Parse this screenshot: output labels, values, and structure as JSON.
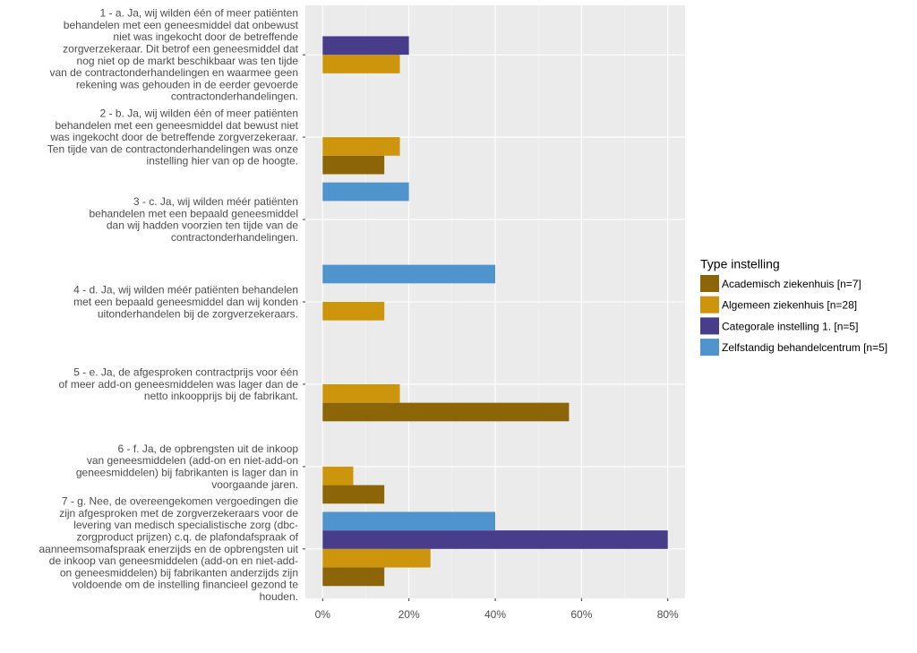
{
  "chart_data": {
    "type": "bar",
    "orientation": "horizontal",
    "categories": [
      "1 - a. Ja, wij wilden één of meer patiënten\nbehandelen met een geneesmiddel dat onbewust\nniet was ingekocht door de betreffende\nzorgverzekeraar. Dit betrof een geneesmiddel dat\nnog niet op de markt beschikbaar was ten tijde\nvan de contractonderhandelingen en waarmee geen\nrekening was gehouden in de eerder gevoerde\ncontractonderhandelingen.",
      "2 - b. Ja, wij wilden één of meer patiënten\nbehandelen met een geneesmiddel dat bewust niet\nwas ingekocht door de betreffende zorgverzekeraar.\nTen tijde van de contractonderhandelingen was onze\ninstelling hier van op de hoogte.",
      "3 - c. Ja, wij wilden méér patiënten\nbehandelen met een bepaald geneesmiddel\ndan wij hadden voorzien ten tijde van de\ncontractonderhandelingen.",
      "4 - d. Ja, wij wilden méér patiënten behandelen\nmet een bepaald geneesmiddel dan wij konden\nuitonderhandelen bij de zorgverzekeraars.",
      "5 - e. Ja, de afgesproken contractprijs voor één\nof meer add-on geneesmiddelen was lager dan de\nnetto inkoopprijs bij de fabrikant.",
      "6 - f. Ja, de opbrengsten uit de inkoop\nvan geneesmiddelen (add-on en niet-add-on\ngeneesmiddelen) bij fabrikanten is lager dan in\nvoorgaande jaren.",
      "7 - g. Nee, de overeengekomen vergoedingen die\nzijn afgesproken met de zorgverzekeraars voor de\nlevering van medisch specialistische zorg (dbc-\nzorgproduct prijzen) c.q. de plafondafspraak of\naanneemsomafspraak enerzijds en de opbrengsten uit\nde inkoop van geneesmiddelen (add-on en niet-add-\non geneesmiddelen) bij fabrikanten anderzijds zijn\nvoldoende om de instelling financieel gezond te\nhouden."
    ],
    "series": [
      {
        "name": "Academisch ziekenhuis [n=7]",
        "color": "#8b6508",
        "values": [
          0,
          14.3,
          0,
          0,
          57.1,
          14.3,
          14.3
        ]
      },
      {
        "name": "Algemeen ziekenhuis [n=28]",
        "color": "#cd950c",
        "values": [
          17.9,
          17.9,
          0,
          14.3,
          17.9,
          7.1,
          25
        ]
      },
      {
        "name": "Categorale instelling 1. [n=5]",
        "color": "#483d8b",
        "values": [
          20,
          0,
          0,
          0,
          0,
          0,
          80
        ]
      },
      {
        "name": "Zelfstandig behandelcentrum [n=5]",
        "color": "#4f94cd",
        "values": [
          0,
          0,
          20,
          40,
          0,
          0,
          40
        ]
      }
    ],
    "legend_title": "Type instelling",
    "xlim": [
      -4,
      84
    ],
    "xticks": [
      {
        "value": 0,
        "label": "0%"
      },
      {
        "value": 20,
        "label": "20%"
      },
      {
        "value": 40,
        "label": "40%"
      },
      {
        "value": 60,
        "label": "60%"
      },
      {
        "value": 80,
        "label": "80%"
      }
    ],
    "grid": true
  }
}
